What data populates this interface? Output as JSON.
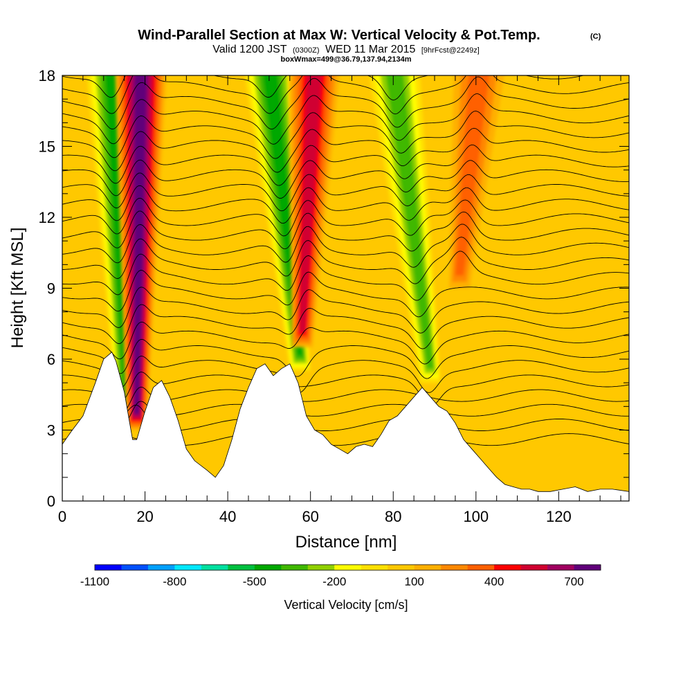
{
  "chart_data": {
    "type": "heatmap",
    "title": "Wind-Parallel Section at Max W: Vertical Velocity & Pot.Temp.",
    "title_mark": "(C)",
    "subtitle_parts": [
      "Valid 1200 JST",
      "(0300Z)",
      "WED 11 Mar 2015",
      "[9hrFcst@2249z]"
    ],
    "subtitle2": "boxWmax=499@36.79,137.94,2134m",
    "xlabel": "Distance [nm]",
    "ylabel": "Height [Kft MSL]",
    "xlim": [
      0,
      137
    ],
    "ylim": [
      0,
      18
    ],
    "x_ticks": [
      "0",
      "20",
      "40",
      "60",
      "80",
      "100",
      "120"
    ],
    "x_tick_values": [
      0,
      20,
      40,
      60,
      80,
      100,
      120
    ],
    "y_ticks": [
      "0",
      "3",
      "6",
      "9",
      "12",
      "15",
      "18"
    ],
    "y_tick_values": [
      0,
      3,
      6,
      9,
      12,
      15,
      18
    ],
    "grid": false,
    "colorbar": {
      "label": "Vertical Velocity [cm/s]",
      "tick_labels": [
        "-1100",
        "-800",
        "-500",
        "-200",
        "100",
        "400",
        "700"
      ],
      "tick_values": [
        -1100,
        -800,
        -500,
        -200,
        100,
        400,
        700
      ],
      "levels": [
        -1100,
        -1000,
        -900,
        -800,
        -700,
        -600,
        -500,
        -400,
        -300,
        -200,
        -100,
        0,
        100,
        200,
        300,
        400,
        500,
        600,
        700,
        800
      ],
      "colors": [
        "#0000ff",
        "#0050ff",
        "#00a0ff",
        "#00e8ff",
        "#00e0a0",
        "#00c040",
        "#00a800",
        "#40b800",
        "#90d000",
        "#ffff00",
        "#ffe000",
        "#ffc800",
        "#ffb000",
        "#ff8800",
        "#ff6000",
        "#ff0000",
        "#d00030",
        "#a00060",
        "#60007a"
      ]
    },
    "background_value_cm_s": 30,
    "vertical_velocity_features": [
      {
        "kind": "downdraft",
        "x_nm_at_top": 12,
        "x_nm_at_base": 15.5,
        "base_kft": 3.6,
        "peak_cm_s": -480
      },
      {
        "kind": "updraft",
        "x_nm_at_top": 19,
        "x_nm_at_base": 18,
        "base_kft": 3.0,
        "peak_cm_s": 720
      },
      {
        "kind": "downdraft",
        "x_nm_at_top": 50,
        "x_nm_at_base": 57.5,
        "base_kft": 5.5,
        "peak_cm_s": -420
      },
      {
        "kind": "updraft",
        "x_nm_at_top": 61,
        "x_nm_at_base": 58,
        "base_kft": 6.5,
        "peak_cm_s": 520
      },
      {
        "kind": "downdraft",
        "x_nm_at_top": 80,
        "x_nm_at_base": 89,
        "base_kft": 5.0,
        "peak_cm_s": -380
      },
      {
        "kind": "updraft",
        "x_nm_at_top": 101,
        "x_nm_at_base": 96,
        "base_kft": 9.0,
        "peak_cm_s": 300
      }
    ],
    "terrain": {
      "x_nm": [
        0,
        2,
        5,
        8,
        10,
        12,
        13,
        15,
        16,
        17,
        18,
        20,
        22,
        24,
        26,
        28,
        30,
        32,
        35,
        37,
        39,
        41,
        43,
        45,
        47,
        49,
        51,
        53,
        55,
        57,
        59,
        61,
        63,
        65,
        67,
        69,
        71,
        73,
        75,
        77,
        79,
        81,
        83,
        85,
        87,
        89,
        91,
        93,
        95,
        97,
        99,
        101,
        103,
        105,
        107,
        109,
        111,
        113,
        115,
        118,
        121,
        124,
        127,
        130,
        133,
        137
      ],
      "height_kft": [
        2.4,
        2.9,
        3.6,
        5.0,
        6.0,
        6.3,
        5.9,
        4.6,
        3.6,
        2.6,
        2.6,
        3.8,
        4.8,
        5.1,
        4.4,
        3.4,
        2.2,
        1.7,
        1.3,
        1.0,
        1.5,
        2.6,
        3.9,
        4.8,
        5.6,
        5.8,
        5.3,
        5.6,
        5.8,
        5.0,
        3.6,
        3.0,
        2.8,
        2.4,
        2.2,
        2.0,
        2.3,
        2.4,
        2.3,
        2.8,
        3.4,
        3.6,
        4.0,
        4.4,
        4.8,
        4.4,
        4.0,
        3.8,
        3.3,
        2.6,
        2.2,
        1.8,
        1.4,
        1.0,
        0.7,
        0.6,
        0.5,
        0.5,
        0.4,
        0.4,
        0.5,
        0.6,
        0.4,
        0.5,
        0.5,
        0.4
      ]
    },
    "theta_contours": {
      "units": "°C",
      "levels": [
        6,
        8,
        10,
        12,
        14,
        16,
        18,
        20,
        22,
        24,
        26,
        28,
        30,
        32,
        34,
        36,
        38,
        40,
        42,
        44,
        46,
        48,
        50,
        52,
        54,
        56
      ]
    }
  }
}
